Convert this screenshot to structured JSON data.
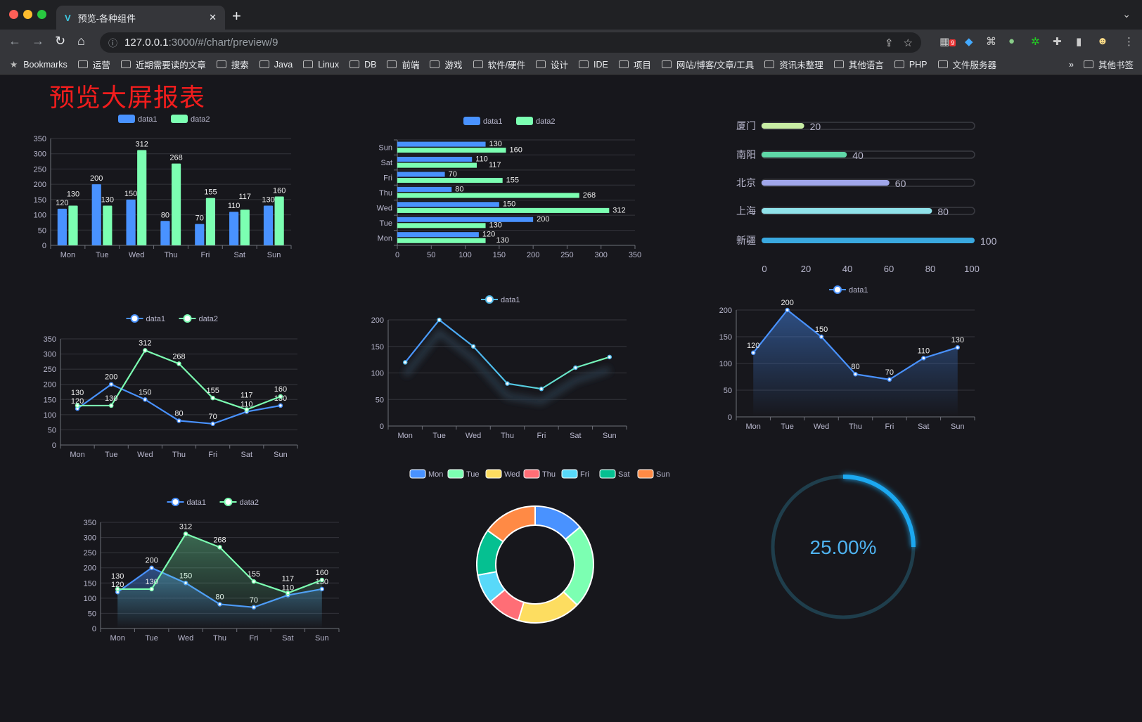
{
  "browser": {
    "tab_title": "预览-各种组件",
    "url_host": "127.0.0.1",
    "url_path": ":3000/#/chart/preview/9",
    "ext_badge": "9",
    "bookmarks": [
      "Bookmarks",
      "运营",
      "近期需要读的文章",
      "搜索",
      "Java",
      "Linux",
      "DB",
      "前端",
      "游戏",
      "软件/硬件",
      "设计",
      "IDE",
      "项目",
      "网站/博客/文章/工具",
      "资讯未整理",
      "其他语言",
      "PHP",
      "文件服务器"
    ],
    "overflow": "»",
    "other_bookmarks": "其他书签"
  },
  "page": {
    "title": "预览大屏报表"
  },
  "chart_data": [
    {
      "id": "bar",
      "type": "bar",
      "categories": [
        "Mon",
        "Tue",
        "Wed",
        "Thu",
        "Fri",
        "Sat",
        "Sun"
      ],
      "series": [
        {
          "name": "data1",
          "values": [
            120,
            200,
            150,
            80,
            70,
            110,
            130
          ],
          "color": "#4992ff"
        },
        {
          "name": "data2",
          "values": [
            130,
            130,
            312,
            268,
            155,
            117,
            160
          ],
          "color": "#7cffb2"
        }
      ],
      "ylim": [
        0,
        350
      ],
      "yticks": [
        0,
        50,
        100,
        150,
        200,
        250,
        300,
        350
      ],
      "grid": true,
      "legend": "top"
    },
    {
      "id": "hbar",
      "type": "bar",
      "orientation": "horizontal",
      "categories": [
        "Mon",
        "Tue",
        "Wed",
        "Thu",
        "Fri",
        "Sat",
        "Sun"
      ],
      "series": [
        {
          "name": "data1",
          "values": [
            120,
            200,
            150,
            80,
            70,
            110,
            130
          ],
          "color": "#4992ff"
        },
        {
          "name": "data2",
          "values": [
            130,
            130,
            312,
            268,
            155,
            117,
            160
          ],
          "color": "#7cffb2"
        }
      ],
      "xlim": [
        0,
        350
      ],
      "xticks": [
        0,
        50,
        100,
        150,
        200,
        250,
        300,
        350
      ],
      "grid": true,
      "legend": "top"
    },
    {
      "id": "progress",
      "type": "bar",
      "orientation": "horizontal",
      "categories": [
        "厦门",
        "南阳",
        "北京",
        "上海",
        "新疆"
      ],
      "values": [
        20,
        40,
        60,
        80,
        100
      ],
      "colors": [
        "#c8eda4",
        "#5fd8a8",
        "#a0a6ea",
        "#90e2ea",
        "#3aa9e0"
      ],
      "xlim": [
        0,
        100
      ],
      "xticks": [
        0,
        20,
        40,
        60,
        80,
        100
      ]
    },
    {
      "id": "line2",
      "type": "line",
      "categories": [
        "Mon",
        "Tue",
        "Wed",
        "Thu",
        "Fri",
        "Sat",
        "Sun"
      ],
      "series": [
        {
          "name": "data1",
          "values": [
            120,
            200,
            150,
            80,
            70,
            110,
            130
          ],
          "color": "#4992ff"
        },
        {
          "name": "data2",
          "values": [
            130,
            130,
            312,
            268,
            155,
            117,
            160
          ],
          "color": "#7cffb2"
        }
      ],
      "ylim": [
        0,
        350
      ],
      "yticks": [
        0,
        50,
        100,
        150,
        200,
        250,
        300,
        350
      ],
      "grid": true,
      "legend": "top"
    },
    {
      "id": "gradline",
      "type": "line",
      "categories": [
        "Mon",
        "Tue",
        "Wed",
        "Thu",
        "Fri",
        "Sat",
        "Sun"
      ],
      "series": [
        {
          "name": "data1",
          "values": [
            120,
            200,
            150,
            80,
            70,
            110,
            130
          ],
          "color": "#4fb8e8"
        }
      ],
      "ylim": [
        0,
        200
      ],
      "yticks": [
        0,
        50,
        100,
        150,
        200
      ],
      "grid": true,
      "legend": "top"
    },
    {
      "id": "area1",
      "type": "area",
      "categories": [
        "Mon",
        "Tue",
        "Wed",
        "Thu",
        "Fri",
        "Sat",
        "Sun"
      ],
      "series": [
        {
          "name": "data1",
          "values": [
            120,
            200,
            150,
            80,
            70,
            110,
            130
          ],
          "color": "#4992ff"
        }
      ],
      "ylim": [
        0,
        200
      ],
      "yticks": [
        0,
        50,
        100,
        150,
        200
      ],
      "grid": true,
      "legend": "top"
    },
    {
      "id": "area2",
      "type": "area",
      "categories": [
        "Mon",
        "Tue",
        "Wed",
        "Thu",
        "Fri",
        "Sat",
        "Sun"
      ],
      "series": [
        {
          "name": "data1",
          "values": [
            120,
            200,
            150,
            80,
            70,
            110,
            130
          ],
          "color": "#4992ff"
        },
        {
          "name": "data2",
          "values": [
            130,
            130,
            312,
            268,
            155,
            117,
            160
          ],
          "color": "#7cffb2"
        }
      ],
      "ylim": [
        0,
        350
      ],
      "yticks": [
        0,
        50,
        100,
        150,
        200,
        250,
        300,
        350
      ],
      "grid": true,
      "legend": "top"
    },
    {
      "id": "donut",
      "type": "pie",
      "categories": [
        "Mon",
        "Tue",
        "Wed",
        "Thu",
        "Fri",
        "Sat",
        "Sun"
      ],
      "values": [
        120,
        200,
        150,
        80,
        70,
        110,
        130
      ],
      "colors": [
        "#4992ff",
        "#7cffb2",
        "#fddd60",
        "#ff6e76",
        "#58d9f9",
        "#05c091",
        "#ff8a45"
      ],
      "legend": "top"
    },
    {
      "id": "gauge",
      "type": "gauge",
      "value": 25,
      "label": "25.00%",
      "color": "#1fa8f0",
      "track": "#1f3e4c"
    }
  ]
}
